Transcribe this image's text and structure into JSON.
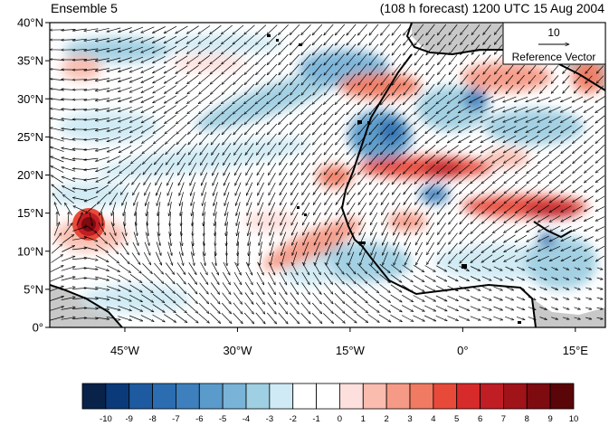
{
  "header": {
    "left_title": "Ensemble 5",
    "right_title": "(108 h forecast) 1200 UTC 15 Aug 2004"
  },
  "map": {
    "lat_labels": [
      "40°N",
      "35°N",
      "30°N",
      "25°N",
      "20°N",
      "15°N",
      "10°N",
      "5°N",
      "0°"
    ],
    "lon_labels": [
      "45°W",
      "30°W",
      "15°W",
      "0°",
      "15°E"
    ],
    "lon_range_deg": [
      -55,
      19
    ],
    "lat_range_deg": [
      0,
      40
    ],
    "coastline_color": "#000000",
    "land_missing_color": "#c8c8c8"
  },
  "reference_vector": {
    "magnitude_label": "10",
    "caption": "Reference Vector"
  },
  "colorbar": {
    "labels": [
      "-10",
      "-9",
      "-8",
      "-7",
      "-6",
      "-5",
      "-4",
      "-3",
      "-2",
      "-1",
      "0",
      "1",
      "2",
      "3",
      "4",
      "5",
      "6",
      "7",
      "8",
      "9",
      "10"
    ],
    "colors": [
      "#08224a",
      "#0b3a7a",
      "#1d5aa0",
      "#2b6db0",
      "#3d80bd",
      "#5a9bcb",
      "#79b3d8",
      "#9fcfe2",
      "#cfeaf4",
      "#ffffff",
      "#ffffff",
      "#fde0dd",
      "#f9bcae",
      "#f59a86",
      "#f07a62",
      "#e84a3a",
      "#d72a2a",
      "#c01d24",
      "#a01318",
      "#7d0b10",
      "#5a0508"
    ]
  },
  "anomaly_features": [
    {
      "name": "tropical-cyclone-core",
      "lon": -50.5,
      "lat": 14.5,
      "value": 10
    },
    {
      "name": "saharan-heat-band-west",
      "lon": -7,
      "lat": 21.5,
      "value": 7
    },
    {
      "name": "saharan-heat-band-east",
      "lon": 8,
      "lat": 16.5,
      "value": 7
    },
    {
      "name": "moroccan-warm-patch",
      "lon": -11,
      "lat": 31,
      "value": 5
    },
    {
      "name": "mauritania-cool-patch",
      "lon": -11,
      "lat": 26.5,
      "value": -6
    },
    {
      "name": "west-atlantic-cool-band",
      "lon": -30,
      "lat": 30,
      "value": -3
    },
    {
      "name": "iberia-cool-patch",
      "lon": 2,
      "lat": 30.5,
      "value": -4
    },
    {
      "name": "cape-verde-warm-arc",
      "lon": -20,
      "lat": 13,
      "value": 4
    }
  ]
}
